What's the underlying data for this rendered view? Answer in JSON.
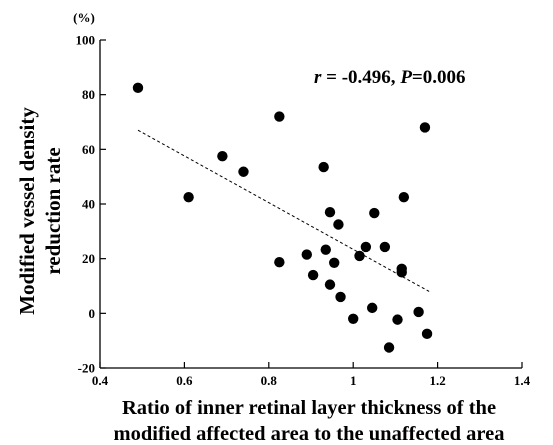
{
  "chart_data": {
    "type": "scatter",
    "title": "",
    "unit_label": "(%)",
    "xlabel_lines": [
      "Ratio of inner retinal layer thickness of the",
      "modified affected area to the unaffected area"
    ],
    "ylabel_lines": [
      "Modified vessel density",
      "reduction rate"
    ],
    "xlim": [
      0.4,
      1.4
    ],
    "ylim": [
      -20,
      100
    ],
    "xticks": [
      0.4,
      0.6,
      0.8,
      1.0,
      1.2,
      1.4
    ],
    "xtick_labels": [
      "0.4",
      "0.6",
      "0.8",
      "1",
      "1.2",
      "1.4"
    ],
    "yticks": [
      -20,
      0,
      20,
      40,
      60,
      80,
      100
    ],
    "ytick_labels": [
      "-20",
      "0",
      "20",
      "40",
      "60",
      "80",
      "100"
    ],
    "grid": false,
    "annotation": {
      "r_symbol": "r",
      "r_value": " = -0.496, ",
      "p_symbol": "P",
      "p_value": "=0.006"
    },
    "regression_line": {
      "x": [
        0.49,
        1.18
      ],
      "y": [
        67,
        8
      ]
    },
    "points": [
      {
        "x": 0.49,
        "y": 82.5
      },
      {
        "x": 0.61,
        "y": 42.5
      },
      {
        "x": 0.69,
        "y": 57.5
      },
      {
        "x": 0.74,
        "y": 51.8
      },
      {
        "x": 0.825,
        "y": 72
      },
      {
        "x": 0.825,
        "y": 18.7
      },
      {
        "x": 0.89,
        "y": 21.5
      },
      {
        "x": 0.905,
        "y": 14
      },
      {
        "x": 0.93,
        "y": 53.5
      },
      {
        "x": 0.935,
        "y": 23.3
      },
      {
        "x": 0.945,
        "y": 37
      },
      {
        "x": 0.945,
        "y": 10.5
      },
      {
        "x": 0.955,
        "y": 18.5
      },
      {
        "x": 0.965,
        "y": 32.5
      },
      {
        "x": 0.97,
        "y": 6
      },
      {
        "x": 1.0,
        "y": -2
      },
      {
        "x": 1.015,
        "y": 21
      },
      {
        "x": 1.03,
        "y": 24.3
      },
      {
        "x": 1.045,
        "y": 2
      },
      {
        "x": 1.05,
        "y": 36.7
      },
      {
        "x": 1.075,
        "y": 24.3
      },
      {
        "x": 1.085,
        "y": -12.5
      },
      {
        "x": 1.105,
        "y": -2.3
      },
      {
        "x": 1.115,
        "y": 16.3
      },
      {
        "x": 1.115,
        "y": 15
      },
      {
        "x": 1.12,
        "y": 42.5
      },
      {
        "x": 1.155,
        "y": 0.5
      },
      {
        "x": 1.17,
        "y": 68
      },
      {
        "x": 1.175,
        "y": -7.5
      }
    ]
  }
}
